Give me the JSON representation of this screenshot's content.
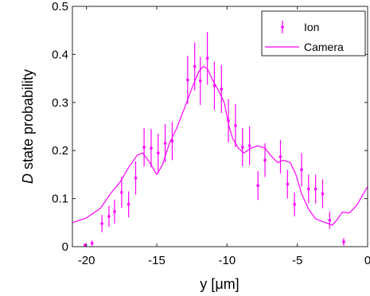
{
  "chart_data": {
    "type": "scatter",
    "xlabel_parts": [
      "y [",
      "μ",
      "m]"
    ],
    "ylabel_parts": [
      "D",
      " state probability"
    ],
    "xlim": [
      -21,
      0
    ],
    "ylim": [
      0,
      0.5
    ],
    "xticks": [
      -20,
      -15,
      -10,
      -5,
      0
    ],
    "yticks": [
      0,
      0.1,
      0.2,
      0.3,
      0.4,
      0.5
    ],
    "ytick_labels": [
      "0",
      "0.1",
      "0.2",
      "0.3",
      "0.4",
      "0.5"
    ],
    "grid": false,
    "legend_position": "top-right",
    "color": "#ff00ff",
    "series": [
      {
        "name": "Ion",
        "style": "errorbar",
        "points": [
          {
            "x": -20.1,
            "y": 0.003,
            "err": 0.004
          },
          {
            "x": -19.6,
            "y": 0.007,
            "err": 0.006
          },
          {
            "x": -18.9,
            "y": 0.048,
            "err": 0.018
          },
          {
            "x": -18.4,
            "y": 0.063,
            "err": 0.022
          },
          {
            "x": -18.0,
            "y": 0.073,
            "err": 0.025
          },
          {
            "x": -17.5,
            "y": 0.113,
            "err": 0.032
          },
          {
            "x": -17.0,
            "y": 0.088,
            "err": 0.027
          },
          {
            "x": -16.5,
            "y": 0.143,
            "err": 0.035
          },
          {
            "x": -15.9,
            "y": 0.207,
            "err": 0.04
          },
          {
            "x": -15.4,
            "y": 0.205,
            "err": 0.04
          },
          {
            "x": -14.9,
            "y": 0.195,
            "err": 0.04
          },
          {
            "x": -14.4,
            "y": 0.215,
            "err": 0.04
          },
          {
            "x": -13.9,
            "y": 0.22,
            "err": 0.04
          },
          {
            "x": -12.8,
            "y": 0.347,
            "err": 0.05
          },
          {
            "x": -12.3,
            "y": 0.375,
            "err": 0.05
          },
          {
            "x": -11.9,
            "y": 0.345,
            "err": 0.05
          },
          {
            "x": -11.4,
            "y": 0.392,
            "err": 0.055
          },
          {
            "x": -10.9,
            "y": 0.335,
            "err": 0.05
          },
          {
            "x": -10.4,
            "y": 0.328,
            "err": 0.05
          },
          {
            "x": -9.9,
            "y": 0.262,
            "err": 0.045
          },
          {
            "x": -9.4,
            "y": 0.252,
            "err": 0.045
          },
          {
            "x": -8.9,
            "y": 0.207,
            "err": 0.04
          },
          {
            "x": -8.4,
            "y": 0.21,
            "err": 0.04
          },
          {
            "x": -7.8,
            "y": 0.127,
            "err": 0.03
          },
          {
            "x": -7.3,
            "y": 0.18,
            "err": 0.035
          },
          {
            "x": -6.2,
            "y": 0.187,
            "err": 0.035
          },
          {
            "x": -5.7,
            "y": 0.13,
            "err": 0.03
          },
          {
            "x": -5.2,
            "y": 0.088,
            "err": 0.025
          },
          {
            "x": -4.7,
            "y": 0.16,
            "err": 0.035
          },
          {
            "x": -4.2,
            "y": 0.12,
            "err": 0.03
          },
          {
            "x": -3.7,
            "y": 0.12,
            "err": 0.03
          },
          {
            "x": -3.2,
            "y": 0.11,
            "err": 0.03
          },
          {
            "x": -2.7,
            "y": 0.055,
            "err": 0.018
          },
          {
            "x": -1.7,
            "y": 0.01,
            "err": 0.008
          }
        ]
      },
      {
        "name": "Camera",
        "style": "line",
        "x": [
          -21.0,
          -20.0,
          -19.0,
          -18.3,
          -17.6,
          -17.0,
          -16.4,
          -16.0,
          -15.5,
          -15.0,
          -14.6,
          -14.1,
          -13.6,
          -13.0,
          -12.5,
          -12.0,
          -11.7,
          -11.4,
          -11.0,
          -10.6,
          -10.2,
          -9.9,
          -9.6,
          -9.2,
          -8.8,
          -8.3,
          -7.8,
          -7.3,
          -6.9,
          -6.4,
          -6.0,
          -5.5,
          -5.1,
          -4.7,
          -4.2,
          -3.7,
          -3.2,
          -2.8,
          -2.5,
          -2.2,
          -1.8,
          -1.3,
          -0.8,
          -0.3,
          0.0
        ],
        "values": [
          0.05,
          0.06,
          0.08,
          0.11,
          0.135,
          0.165,
          0.19,
          0.195,
          0.175,
          0.15,
          0.17,
          0.215,
          0.245,
          0.29,
          0.33,
          0.365,
          0.375,
          0.37,
          0.345,
          0.325,
          0.3,
          0.255,
          0.225,
          0.205,
          0.195,
          0.205,
          0.21,
          0.205,
          0.19,
          0.175,
          0.18,
          0.175,
          0.15,
          0.11,
          0.078,
          0.058,
          0.052,
          0.048,
          0.045,
          0.055,
          0.072,
          0.07,
          0.085,
          0.11,
          0.125
        ]
      }
    ]
  }
}
